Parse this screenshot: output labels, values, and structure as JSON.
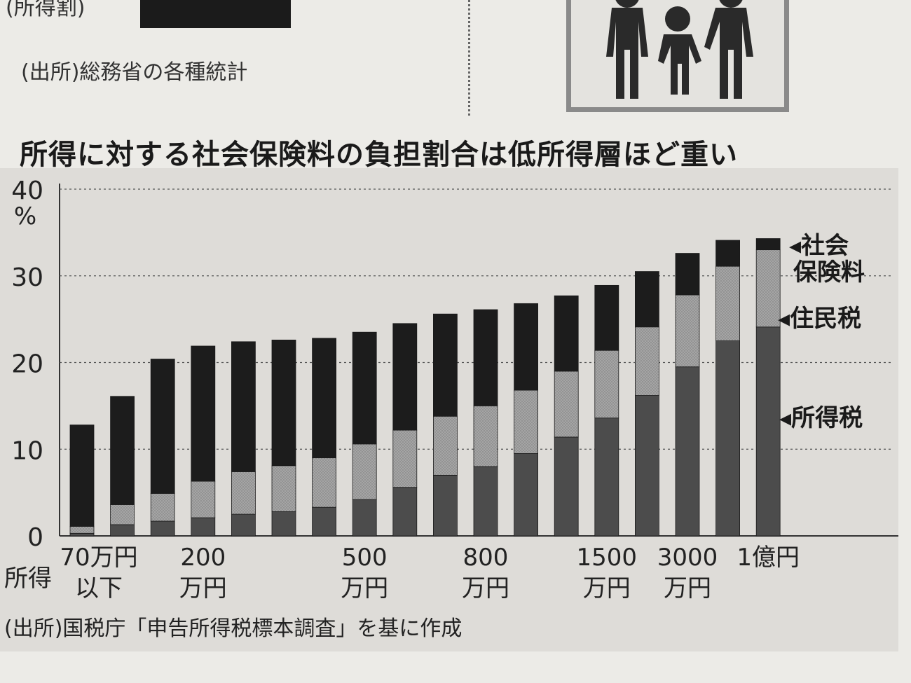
{
  "top": {
    "partial_label": "(所得割)",
    "source_1": "(出所)総務省の各種統計"
  },
  "chart_data": {
    "type": "bar",
    "stacked": true,
    "title": "所得に対する社会保険料の負担割合は低所得層ほど重い",
    "ylabel": "%",
    "xlabel": "所得",
    "ylim": [
      0,
      40
    ],
    "yticks": [
      0,
      10,
      20,
      30,
      40
    ],
    "grid": "dotted horizontal",
    "x_tick_labels": [
      {
        "index": 0,
        "lines": [
          "70万円",
          "以下"
        ]
      },
      {
        "index": 3,
        "lines": [
          "200",
          "万円"
        ]
      },
      {
        "index": 7,
        "lines": [
          "500",
          "万円"
        ]
      },
      {
        "index": 10,
        "lines": [
          "800",
          "万円"
        ]
      },
      {
        "index": 13,
        "lines": [
          "1500",
          "万円"
        ]
      },
      {
        "index": 15,
        "lines": [
          "3000",
          "万円"
        ]
      },
      {
        "index": 17,
        "lines": [
          "1億円"
        ]
      }
    ],
    "series": [
      {
        "name": "所得税",
        "color": "#4c4c4c",
        "values": [
          0.3,
          1.3,
          1.7,
          2.1,
          2.5,
          2.8,
          3.3,
          4.2,
          5.6,
          7.0,
          8.0,
          9.5,
          11.4,
          13.6,
          16.2,
          19.5,
          22.5,
          24.1
        ]
      },
      {
        "name": "住民税",
        "color": "#9c9c9c",
        "values": [
          0.8,
          2.3,
          3.2,
          4.2,
          4.9,
          5.3,
          5.7,
          6.4,
          6.6,
          6.8,
          7.0,
          7.3,
          7.6,
          7.8,
          7.9,
          8.3,
          8.6,
          8.9
        ]
      },
      {
        "name": "社会保険料",
        "color": "#1c1c1c",
        "values": [
          11.7,
          12.5,
          15.5,
          15.6,
          15.0,
          14.5,
          13.8,
          12.9,
          12.3,
          11.8,
          11.1,
          10.0,
          8.7,
          7.5,
          6.4,
          4.8,
          3.0,
          1.3
        ]
      }
    ],
    "legend": [
      {
        "label_lines": [
          "社会",
          "保険料"
        ],
        "series": "社会保険料"
      },
      {
        "label_lines": [
          "住民税"
        ],
        "series": "住民税"
      },
      {
        "label_lines": [
          "所得税"
        ],
        "series": "所得税"
      }
    ],
    "legend_position": "right"
  },
  "bottom": {
    "source_2": "(出所)国税庁「申告所得税標本調査」を基に作成"
  }
}
